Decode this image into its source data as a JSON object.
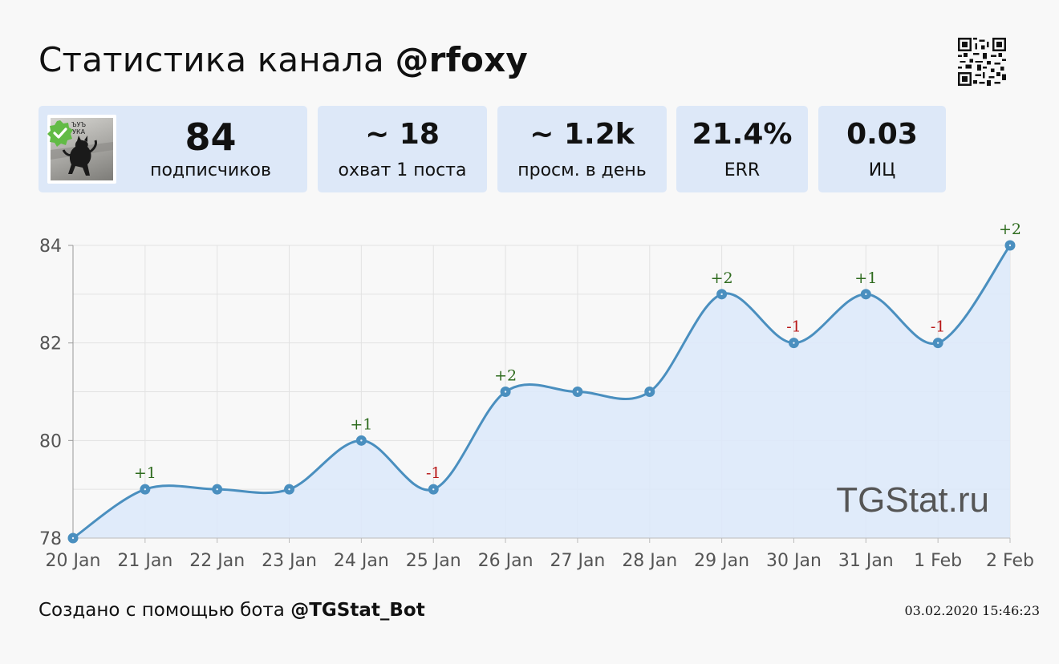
{
  "header": {
    "title_prefix": "Статистика канала",
    "channel": "@rfoxy"
  },
  "avatar": {
    "caption": "ЪУЪ\nУКА"
  },
  "stats": [
    {
      "value": "84",
      "label": "подписчиков"
    },
    {
      "value": "~ 18",
      "label": "охват 1 поста"
    },
    {
      "value": "~ 1.2k",
      "label": "просм. в день"
    },
    {
      "value": "21.4%",
      "label": "ERR"
    },
    {
      "value": "0.03",
      "label": "ИЦ"
    }
  ],
  "chart_data": {
    "type": "area",
    "categories": [
      "20 Jan",
      "21 Jan",
      "22 Jan",
      "23 Jan",
      "24 Jan",
      "25 Jan",
      "26 Jan",
      "27 Jan",
      "28 Jan",
      "29 Jan",
      "30 Jan",
      "31 Jan",
      "1 Feb",
      "2 Feb"
    ],
    "series": [
      {
        "values": [
          78,
          79,
          79,
          79,
          80,
          79,
          81,
          81,
          81,
          83,
          82,
          83,
          82,
          84
        ]
      }
    ],
    "annotations": [
      "",
      "+1",
      "",
      "",
      "+1",
      "-1",
      "+2",
      "",
      "",
      "+2",
      "-1",
      "+1",
      "-1",
      "+2"
    ],
    "yticks": [
      78,
      80,
      82,
      84
    ],
    "ylim": [
      78,
      84
    ],
    "grid": true,
    "watermark": "TGStat.ru",
    "colors": {
      "line": "#4a8fbf",
      "fill": "#dde9f9",
      "positive": "#2e6b1e",
      "negative": "#b81818"
    }
  },
  "footer": {
    "prefix": "Создано с помощью бота",
    "bot": "@TGStat_Bot",
    "timestamp": "03.02.2020 15:46:23"
  }
}
